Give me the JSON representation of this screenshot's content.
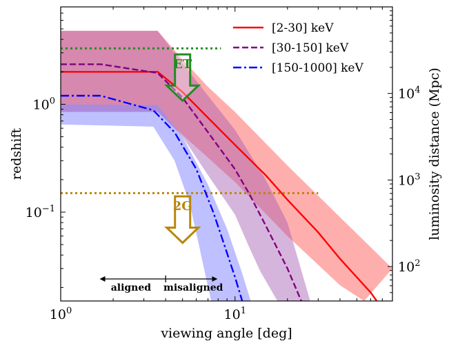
{
  "chart_data": {
    "type": "line",
    "xlabel": "viewing angle [deg]",
    "ylabel": "redshift",
    "y2label": "luminosity distance (Mpc)",
    "xscale": "log",
    "yscale": "log",
    "xlim": [
      1,
      80
    ],
    "ylim": [
      0.015,
      8
    ],
    "y2lim": [
      40,
      100000
    ],
    "x_ticks": [
      {
        "value": 1,
        "base": "10",
        "exp": "0"
      },
      {
        "value": 10,
        "base": "10",
        "exp": "1"
      }
    ],
    "y_ticks": [
      {
        "value": 0.1,
        "base": "10",
        "exp": "−1"
      },
      {
        "value": 1,
        "base": "10",
        "exp": "0"
      }
    ],
    "y2_ticks": [
      {
        "value": 100,
        "base": "10",
        "exp": "2"
      },
      {
        "value": 1000,
        "base": "10",
        "exp": "3"
      },
      {
        "value": 10000,
        "base": "10",
        "exp": "4"
      }
    ],
    "grid": false,
    "legend_position": "top-right",
    "series": [
      {
        "name": "[2-30] keV",
        "color": "#ff0000",
        "band_color": "#ff6b6b",
        "linestyle": "solid",
        "x": [
          1,
          3.6,
          5,
          7,
          10,
          15,
          20,
          30,
          40,
          60,
          65
        ],
        "y": [
          2.0,
          2.0,
          1.3,
          0.75,
          0.42,
          0.22,
          0.13,
          0.065,
          0.037,
          0.018,
          0.015
        ],
        "band_upper_x": [
          1,
          3.6,
          5,
          7,
          10,
          20,
          40,
          80
        ],
        "band_upper_y": [
          4.8,
          4.8,
          2.6,
          1.45,
          0.85,
          0.27,
          0.09,
          0.03
        ],
        "band_lower_x": [
          1,
          3.6,
          5,
          7,
          10,
          20,
          40,
          55
        ],
        "band_lower_y": [
          0.85,
          0.85,
          0.52,
          0.32,
          0.19,
          0.06,
          0.021,
          0.015
        ]
      },
      {
        "name": "[30-150] keV",
        "color": "#800080",
        "band_color": "#a35ab1",
        "linestyle": "dashed",
        "x": [
          1,
          1.7,
          3.6,
          5,
          7,
          10,
          12,
          15,
          20,
          24
        ],
        "y": [
          2.35,
          2.35,
          1.95,
          1.15,
          0.55,
          0.25,
          0.15,
          0.075,
          0.03,
          0.015
        ],
        "band_upper_x": [
          1,
          3.6,
          5,
          7,
          10,
          15,
          20,
          27
        ],
        "band_upper_y": [
          4.8,
          4.8,
          2.4,
          1.2,
          0.58,
          0.2,
          0.08,
          0.015
        ],
        "band_lower_x": [
          1,
          3.6,
          5,
          7,
          10,
          12,
          14,
          17.5
        ],
        "band_lower_y": [
          0.85,
          0.85,
          0.5,
          0.22,
          0.095,
          0.048,
          0.028,
          0.015
        ]
      },
      {
        "name": "[150-1000] keV",
        "color": "#0000ff",
        "band_color": "#8a8cff",
        "linestyle": "dashdot",
        "x": [
          1,
          1.7,
          3.4,
          4.5,
          6,
          7.5,
          8.5,
          10,
          11
        ],
        "y": [
          1.2,
          1.2,
          0.88,
          0.55,
          0.25,
          0.1,
          0.055,
          0.025,
          0.015
        ],
        "band_upper_x": [
          1,
          3.6,
          5,
          7,
          9,
          11,
          12.3
        ],
        "band_upper_y": [
          1.0,
          0.98,
          0.5,
          0.18,
          0.07,
          0.027,
          0.015
        ],
        "band_lower_x": [
          1,
          3.4,
          4.5,
          5.5,
          6.2,
          6.8,
          7.3
        ],
        "band_lower_y": [
          0.65,
          0.62,
          0.3,
          0.12,
          0.05,
          0.025,
          0.015
        ]
      }
    ],
    "horizontal_lines": [
      {
        "y": 3.3,
        "x_end": 8.3,
        "color": "#228b22",
        "label": "ET",
        "arrow_x": 5.0,
        "arrow_top_y": 2.9,
        "arrow_tip_y": 1.08
      },
      {
        "y": 0.15,
        "x_end": 30,
        "color": "#b8860b",
        "label": "2G",
        "arrow_x": 5.0,
        "arrow_top_y": 0.14,
        "arrow_tip_y": 0.052
      }
    ],
    "annotations": [
      {
        "text": "aligned",
        "x_from": 1.6,
        "x_to": 4.0,
        "y": 0.022
      },
      {
        "text": "misaligned",
        "x_from": 4.0,
        "x_to": 8.3,
        "y": 0.022
      }
    ]
  }
}
